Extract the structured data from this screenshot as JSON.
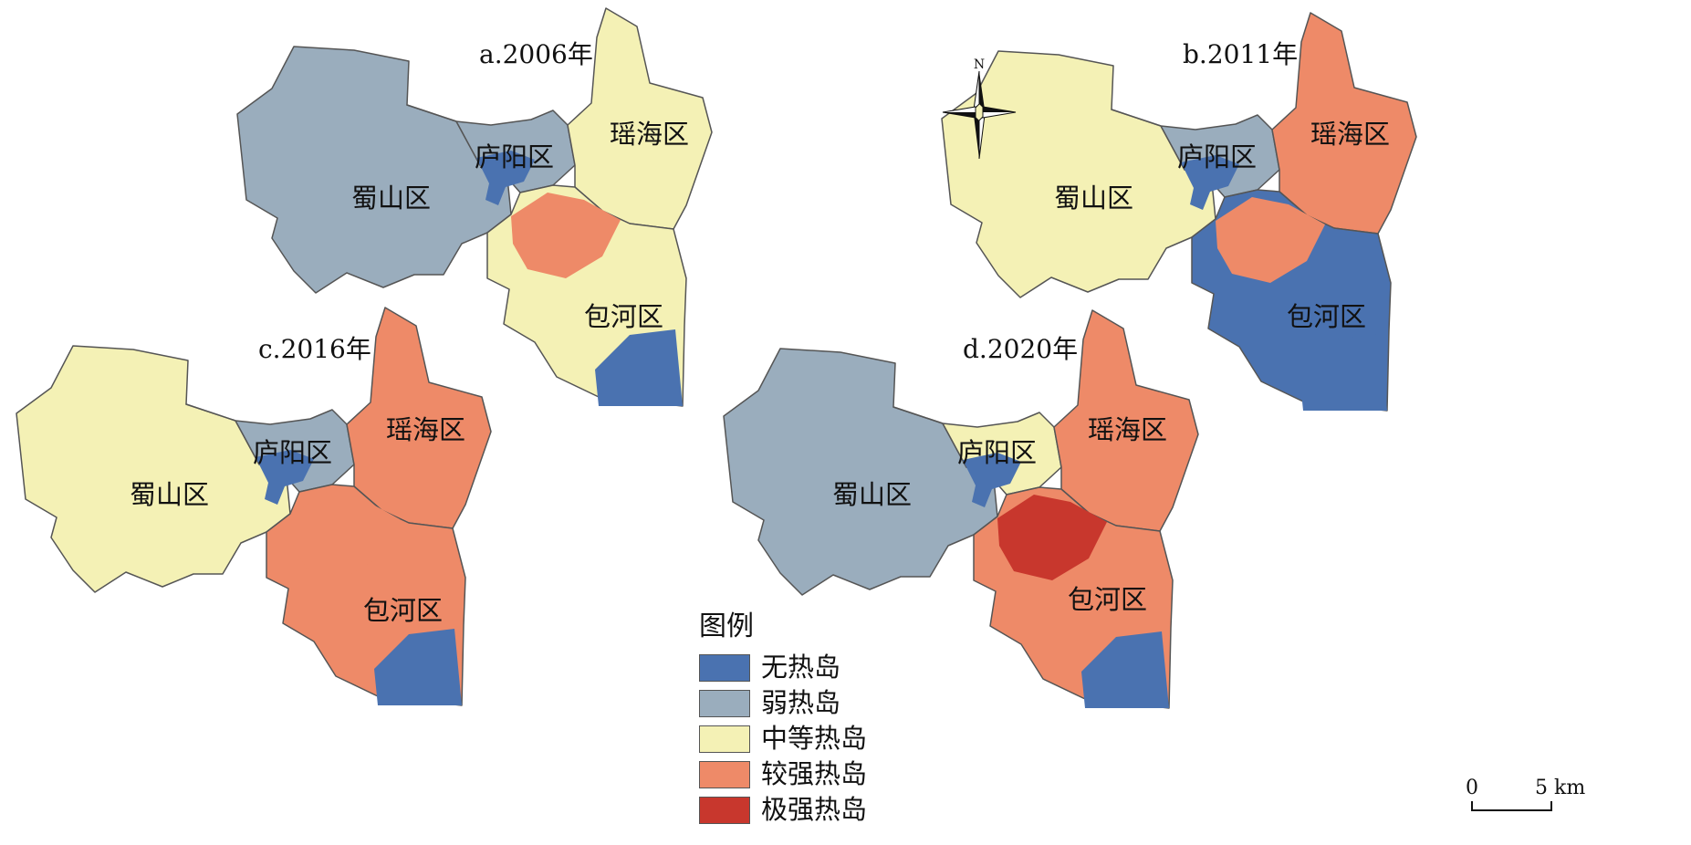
{
  "colors": {
    "no_heat_island": "#4a72b0",
    "weak_heat_island": "#9aadbd",
    "moderate_heat_island": "#f4f1b5",
    "strong_heat_island": "#ee8a68",
    "extreme_heat_island": "#c8372d",
    "boundary": "#555555"
  },
  "panels": [
    {
      "title": "a.2006年",
      "districts": {
        "shushan": "蜀山区",
        "luyang": "庐阳区",
        "yaohai": "瑶海区",
        "baohe": "包河区"
      },
      "fills": {
        "shushan": "weak_heat_island",
        "luyang": "weak_heat_island",
        "yaohai": "moderate_heat_island",
        "baohe": "moderate_heat_island",
        "hotspot": "strong_heat_island",
        "water": "no_heat_island"
      }
    },
    {
      "title": "b.2011年",
      "districts": {
        "shushan": "蜀山区",
        "luyang": "庐阳区",
        "yaohai": "瑶海区",
        "baohe": "包河区"
      },
      "fills": {
        "shushan": "moderate_heat_island",
        "luyang": "weak_heat_island",
        "yaohai": "strong_heat_island",
        "baohe": "no_heat_island",
        "hotspot": "strong_heat_island",
        "water": "no_heat_island"
      }
    },
    {
      "title": "c.2016年",
      "districts": {
        "shushan": "蜀山区",
        "luyang": "庐阳区",
        "yaohai": "瑶海区",
        "baohe": "包河区"
      },
      "fills": {
        "shushan": "moderate_heat_island",
        "luyang": "weak_heat_island",
        "yaohai": "strong_heat_island",
        "baohe": "strong_heat_island",
        "hotspot": "strong_heat_island",
        "water": "no_heat_island"
      }
    },
    {
      "title": "d.2020年",
      "districts": {
        "shushan": "蜀山区",
        "luyang": "庐阳区",
        "yaohai": "瑶海区",
        "baohe": "包河区"
      },
      "fills": {
        "shushan": "weak_heat_island",
        "luyang": "moderate_heat_island",
        "yaohai": "strong_heat_island",
        "baohe": "strong_heat_island",
        "hotspot": "extreme_heat_island",
        "water": "no_heat_island"
      }
    }
  ],
  "legend": {
    "title": "图例",
    "items": [
      {
        "label": "无热岛",
        "color_key": "no_heat_island"
      },
      {
        "label": "弱热岛",
        "color_key": "weak_heat_island"
      },
      {
        "label": "中等热岛",
        "color_key": "moderate_heat_island"
      },
      {
        "label": "较强热岛",
        "color_key": "strong_heat_island"
      },
      {
        "label": "极强热岛",
        "color_key": "extreme_heat_island"
      }
    ]
  },
  "north_arrow": {
    "label": "N"
  },
  "scale_bar": {
    "start": "0",
    "end": "5 km"
  }
}
